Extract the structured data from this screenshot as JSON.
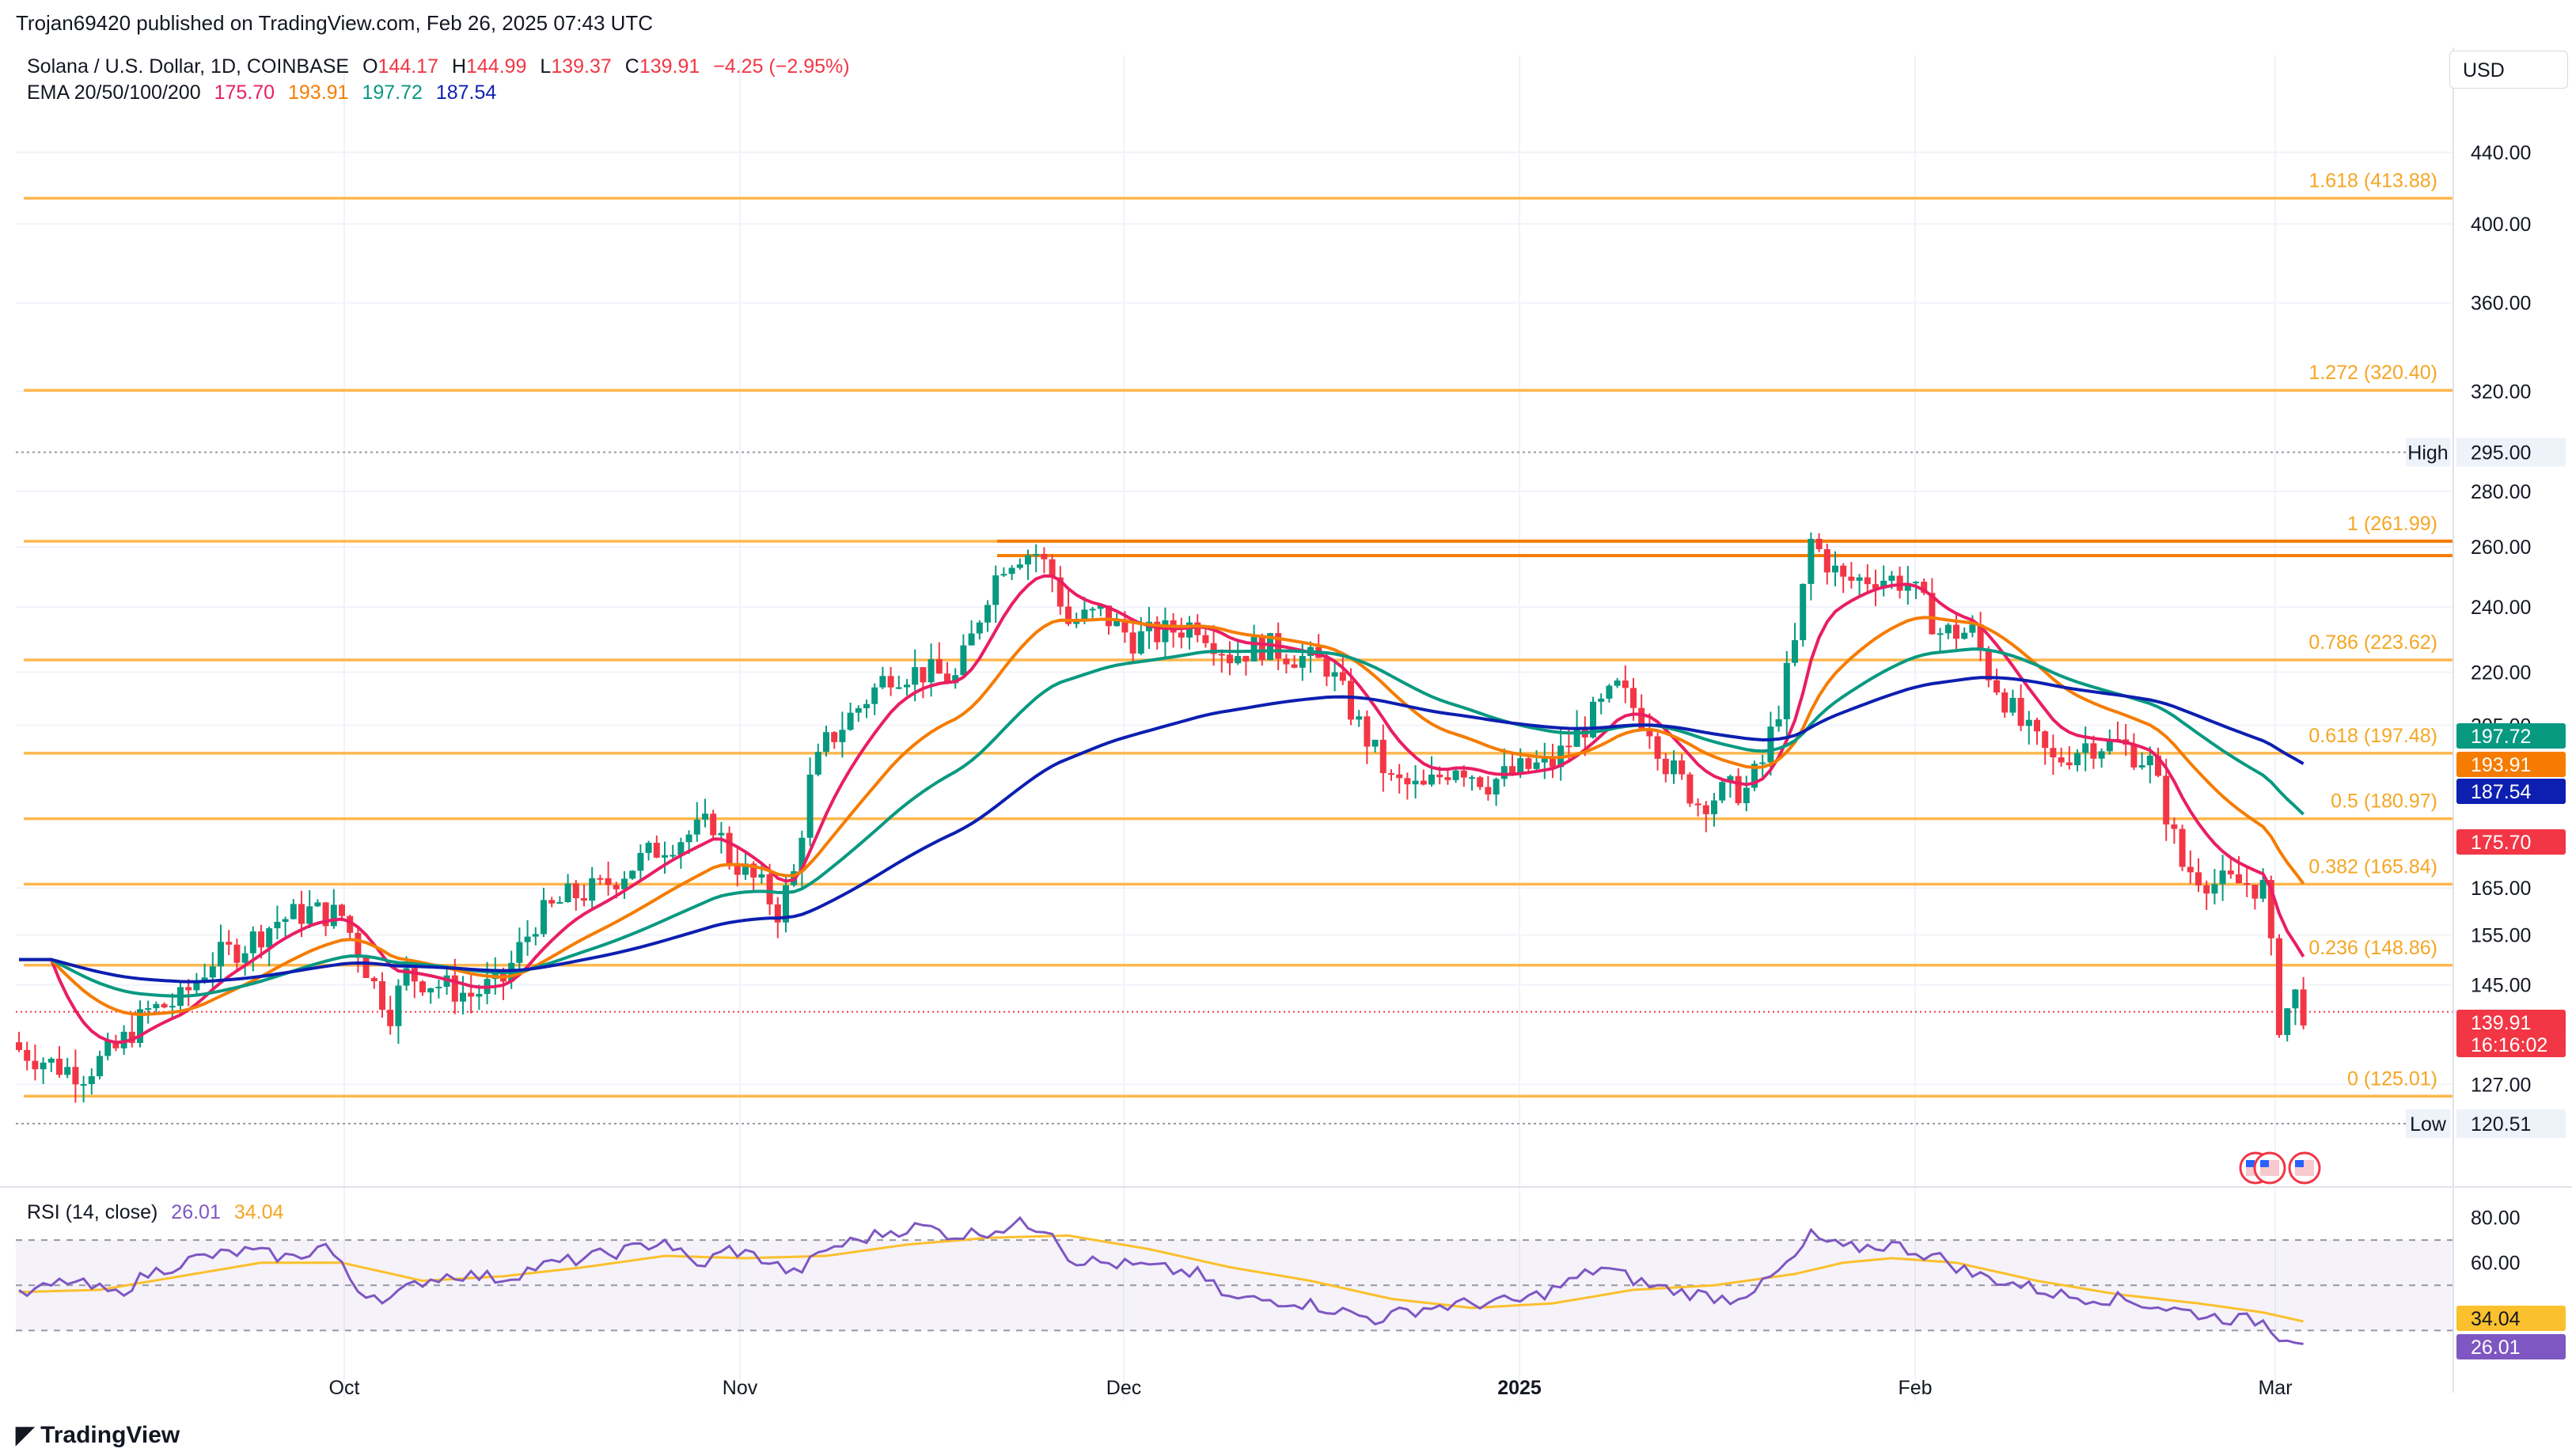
{
  "published": "Trojan69420 published on TradingView.com, Feb 26, 2025 07:43 UTC",
  "legend": {
    "symbol": "Solana / U.S. Dollar, 1D, COINBASE",
    "o_label": "O",
    "o": "144.17",
    "h_label": "H",
    "h": "144.99",
    "l_label": "L",
    "l": "139.37",
    "c_label": "C",
    "c": "139.91",
    "change": "−4.25 (−2.95%)",
    "ema_title": "EMA 20/50/100/200",
    "ema20": "175.70",
    "ema50": "193.91",
    "ema100": "197.72",
    "ema200": "187.54",
    "rsi_title": "RSI (14, close)",
    "rsi": "26.01",
    "rsi_ma": "34.04"
  },
  "currency": "USD",
  "logo_text": "TradingView",
  "colors": {
    "up": "#089981",
    "down": "#f23645",
    "ema20": "#e91e63",
    "ema50": "#f57c00",
    "ema100": "#089981",
    "ema200": "#0d1fb0",
    "fib": "#ffb74d",
    "fib_text": "#f5a623",
    "rsi": "#7e57c2",
    "rsi_ma": "#fbc02d"
  },
  "chart_data": {
    "type": "candlestick",
    "price_axis": {
      "ticks": [
        "440.00",
        "400.00",
        "360.00",
        "320.00",
        "280.00",
        "260.00",
        "240.00",
        "220.00",
        "205.00",
        "165.00",
        "155.00",
        "145.00",
        "127.00"
      ],
      "scale": "log"
    },
    "time_axis": [
      "Oct",
      "Nov",
      "Dec",
      "2025",
      "Feb",
      "Mar"
    ],
    "fib_levels": [
      {
        "label": "1.618 (413.88)",
        "value": 413.88
      },
      {
        "label": "1.272 (320.40)",
        "value": 320.4
      },
      {
        "label": "1 (261.99)",
        "value": 261.99
      },
      {
        "label": "0.786 (223.62)",
        "value": 223.62
      },
      {
        "label": "0.618 (197.48)",
        "value": 197.48
      },
      {
        "label": "0.5 (180.97)",
        "value": 180.97
      },
      {
        "label": "0.382 (165.84)",
        "value": 165.84
      },
      {
        "label": "0.236 (148.86)",
        "value": 148.86
      },
      {
        "label": "0 (125.01)",
        "value": 125.01
      }
    ],
    "high": {
      "label": "High",
      "value": "295.00"
    },
    "low": {
      "label": "Low",
      "value": "120.51"
    },
    "resistance": [
      262.0,
      257.0
    ],
    "badges": [
      {
        "text": "197.72",
        "color": "#089981"
      },
      {
        "text": "193.91",
        "color": "#f57c00"
      },
      {
        "text": "187.54",
        "color": "#0d1fb0"
      },
      {
        "text": "175.70",
        "color": "#f23645"
      },
      {
        "text": "139.91",
        "color": "#f23645"
      },
      {
        "text": "16:16:02",
        "color": "#f23645"
      }
    ],
    "rsi_axis": {
      "ticks": [
        "80.00",
        "60.00"
      ],
      "bands": [
        70,
        30
      ]
    },
    "rsi_badges": [
      {
        "text": "34.04",
        "color": "#fbc02d"
      },
      {
        "text": "26.01",
        "color": "#7e57c2"
      }
    ],
    "anchors": [
      [
        0,
        133
      ],
      [
        5,
        130
      ],
      [
        8,
        129
      ],
      [
        12,
        133
      ],
      [
        16,
        140
      ],
      [
        20,
        142
      ],
      [
        24,
        150
      ],
      [
        28,
        153
      ],
      [
        32,
        158
      ],
      [
        36,
        160
      ],
      [
        40,
        159
      ],
      [
        42,
        152
      ],
      [
        44,
        145
      ],
      [
        46,
        140
      ],
      [
        48,
        147
      ],
      [
        52,
        145
      ],
      [
        56,
        143
      ],
      [
        60,
        146
      ],
      [
        64,
        158
      ],
      [
        68,
        163
      ],
      [
        72,
        165
      ],
      [
        76,
        170
      ],
      [
        80,
        175
      ],
      [
        84,
        178
      ],
      [
        86,
        180
      ],
      [
        88,
        172
      ],
      [
        92,
        165
      ],
      [
        94,
        160
      ],
      [
        96,
        168
      ],
      [
        98,
        190
      ],
      [
        100,
        200
      ],
      [
        104,
        210
      ],
      [
        108,
        220
      ],
      [
        112,
        220
      ],
      [
        116,
        218
      ],
      [
        118,
        230
      ],
      [
        120,
        245
      ],
      [
        122,
        255
      ],
      [
        124,
        258
      ],
      [
        126,
        258
      ],
      [
        128,
        250
      ],
      [
        130,
        235
      ],
      [
        134,
        238
      ],
      [
        138,
        230
      ],
      [
        142,
        232
      ],
      [
        146,
        235
      ],
      [
        150,
        225
      ],
      [
        154,
        228
      ],
      [
        158,
        225
      ],
      [
        162,
        222
      ],
      [
        166,
        205
      ],
      [
        170,
        190
      ],
      [
        174,
        188
      ],
      [
        178,
        195
      ],
      [
        182,
        190
      ],
      [
        186,
        193
      ],
      [
        190,
        195
      ],
      [
        194,
        205
      ],
      [
        198,
        215
      ],
      [
        202,
        205
      ],
      [
        204,
        195
      ],
      [
        208,
        185
      ],
      [
        212,
        188
      ],
      [
        214,
        188
      ],
      [
        216,
        195
      ],
      [
        218,
        210
      ],
      [
        220,
        228
      ],
      [
        222,
        262
      ],
      [
        226,
        248
      ],
      [
        230,
        250
      ],
      [
        234,
        248
      ],
      [
        238,
        232
      ],
      [
        242,
        232
      ],
      [
        244,
        220
      ],
      [
        248,
        205
      ],
      [
        250,
        200
      ],
      [
        252,
        195
      ],
      [
        256,
        200
      ],
      [
        260,
        200
      ],
      [
        264,
        195
      ],
      [
        268,
        170
      ],
      [
        272,
        166
      ],
      [
        276,
        166
      ],
      [
        278,
        165
      ],
      [
        280,
        138
      ],
      [
        282,
        143
      ],
      [
        283,
        139.91
      ]
    ],
    "rsi_points": [
      [
        0,
        45
      ],
      [
        6,
        52
      ],
      [
        12,
        46
      ],
      [
        16,
        55
      ],
      [
        22,
        62
      ],
      [
        28,
        65
      ],
      [
        34,
        62
      ],
      [
        38,
        68
      ],
      [
        42,
        48
      ],
      [
        46,
        44
      ],
      [
        50,
        52
      ],
      [
        54,
        55
      ],
      [
        60,
        53
      ],
      [
        64,
        58
      ],
      [
        70,
        62
      ],
      [
        76,
        66
      ],
      [
        80,
        70
      ],
      [
        84,
        58
      ],
      [
        88,
        66
      ],
      [
        92,
        62
      ],
      [
        96,
        55
      ],
      [
        98,
        60
      ],
      [
        100,
        66
      ],
      [
        104,
        70
      ],
      [
        108,
        74
      ],
      [
        112,
        76
      ],
      [
        116,
        72
      ],
      [
        120,
        74
      ],
      [
        124,
        77
      ],
      [
        128,
        75
      ],
      [
        130,
        62
      ],
      [
        134,
        60
      ],
      [
        140,
        58
      ],
      [
        146,
        55
      ],
      [
        150,
        44
      ],
      [
        158,
        43
      ],
      [
        162,
        40
      ],
      [
        168,
        35
      ],
      [
        174,
        40
      ],
      [
        180,
        42
      ],
      [
        186,
        43
      ],
      [
        190,
        48
      ],
      [
        196,
        58
      ],
      [
        202,
        50
      ],
      [
        206,
        47
      ],
      [
        212,
        44
      ],
      [
        216,
        50
      ],
      [
        220,
        62
      ],
      [
        222,
        72
      ],
      [
        226,
        66
      ],
      [
        232,
        68
      ],
      [
        238,
        62
      ],
      [
        242,
        55
      ],
      [
        248,
        50
      ],
      [
        254,
        45
      ],
      [
        260,
        44
      ],
      [
        266,
        40
      ],
      [
        272,
        36
      ],
      [
        278,
        34
      ],
      [
        280,
        28
      ],
      [
        283,
        26
      ]
    ],
    "rsi_ma_points": [
      [
        0,
        47
      ],
      [
        10,
        48
      ],
      [
        20,
        54
      ],
      [
        30,
        60
      ],
      [
        40,
        60
      ],
      [
        50,
        52
      ],
      [
        60,
        54
      ],
      [
        70,
        58
      ],
      [
        80,
        63
      ],
      [
        90,
        62
      ],
      [
        100,
        63
      ],
      [
        110,
        68
      ],
      [
        120,
        71
      ],
      [
        130,
        72
      ],
      [
        140,
        66
      ],
      [
        150,
        58
      ],
      [
        160,
        52
      ],
      [
        170,
        44
      ],
      [
        180,
        40
      ],
      [
        190,
        42
      ],
      [
        200,
        48
      ],
      [
        210,
        50
      ],
      [
        220,
        55
      ],
      [
        226,
        60
      ],
      [
        232,
        62
      ],
      [
        240,
        60
      ],
      [
        250,
        52
      ],
      [
        260,
        46
      ],
      [
        270,
        42
      ],
      [
        278,
        38
      ],
      [
        283,
        34
      ]
    ]
  }
}
